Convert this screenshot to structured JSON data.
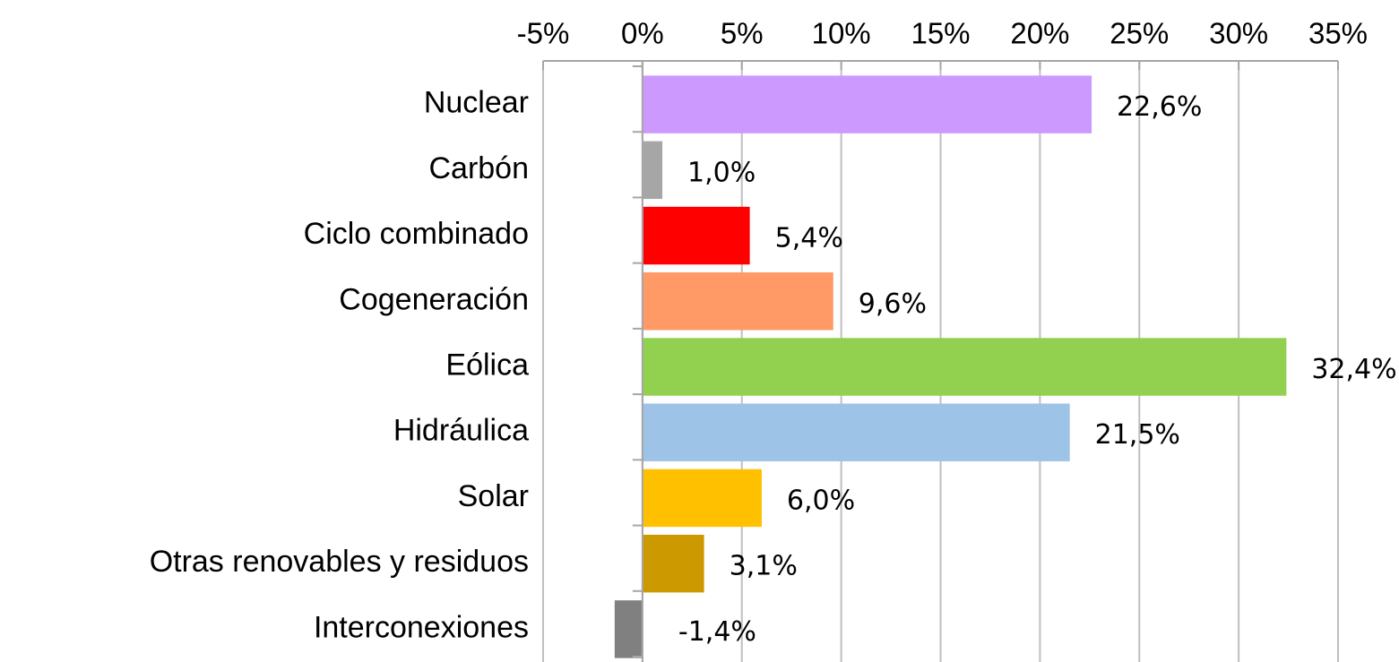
{
  "chart_data": {
    "type": "bar",
    "orientation": "horizontal",
    "categories": [
      "Nuclear",
      "Carbón",
      "Ciclo combinado",
      "Cogeneración",
      "Eólica",
      "Hidráulica",
      "Solar",
      "Otras renovables y residuos",
      "Interconexiones"
    ],
    "values": [
      22.6,
      1.0,
      5.4,
      9.6,
      32.4,
      21.5,
      6.0,
      3.1,
      -1.4
    ],
    "value_labels": [
      "22,6%",
      "1,0%",
      "5,4%",
      "9,6%",
      "32,4%",
      "21,5%",
      "6,0%",
      "3,1%",
      "-1,4%"
    ],
    "colors": [
      "#cc99ff",
      "#a6a6a6",
      "#ff0000",
      "#ff9966",
      "#92d050",
      "#9dc3e6",
      "#ffc000",
      "#cc9900",
      "#808080"
    ],
    "xlim": [
      -5,
      35
    ],
    "xticks": [
      {
        "value": -5,
        "label": "-5%"
      },
      {
        "value": 0,
        "label": "0%"
      },
      {
        "value": 5,
        "label": "5%"
      },
      {
        "value": 10,
        "label": "10%"
      },
      {
        "value": 15,
        "label": "15%"
      },
      {
        "value": 20,
        "label": "20%"
      },
      {
        "value": 25,
        "label": "25%"
      },
      {
        "value": 30,
        "label": "30%"
      },
      {
        "value": 35,
        "label": "35%"
      }
    ],
    "grid": true
  }
}
